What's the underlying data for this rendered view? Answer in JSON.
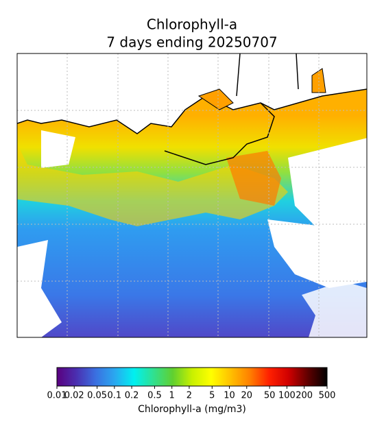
{
  "title_lines": [
    "Chlorophyll-a",
    "7 days ending 20250707"
  ],
  "colorbar": {
    "label": "Chlorophyll-a (mg/m3)",
    "log": true,
    "lim": [
      0.01,
      500
    ],
    "ticks": [
      0.01,
      0.02,
      0.05,
      0.1,
      0.2,
      0.5,
      1,
      2,
      5,
      10,
      20,
      50,
      100,
      200,
      500
    ],
    "colors": [
      "#5a007f",
      "#4a2fb0",
      "#3a6fe0",
      "#2aa8f0",
      "#00f0f0",
      "#30e090",
      "#60d030",
      "#c8f000",
      "#ffff00",
      "#ffc000",
      "#ff8000",
      "#ff2000",
      "#d00000",
      "#600000",
      "#000000"
    ]
  }
}
